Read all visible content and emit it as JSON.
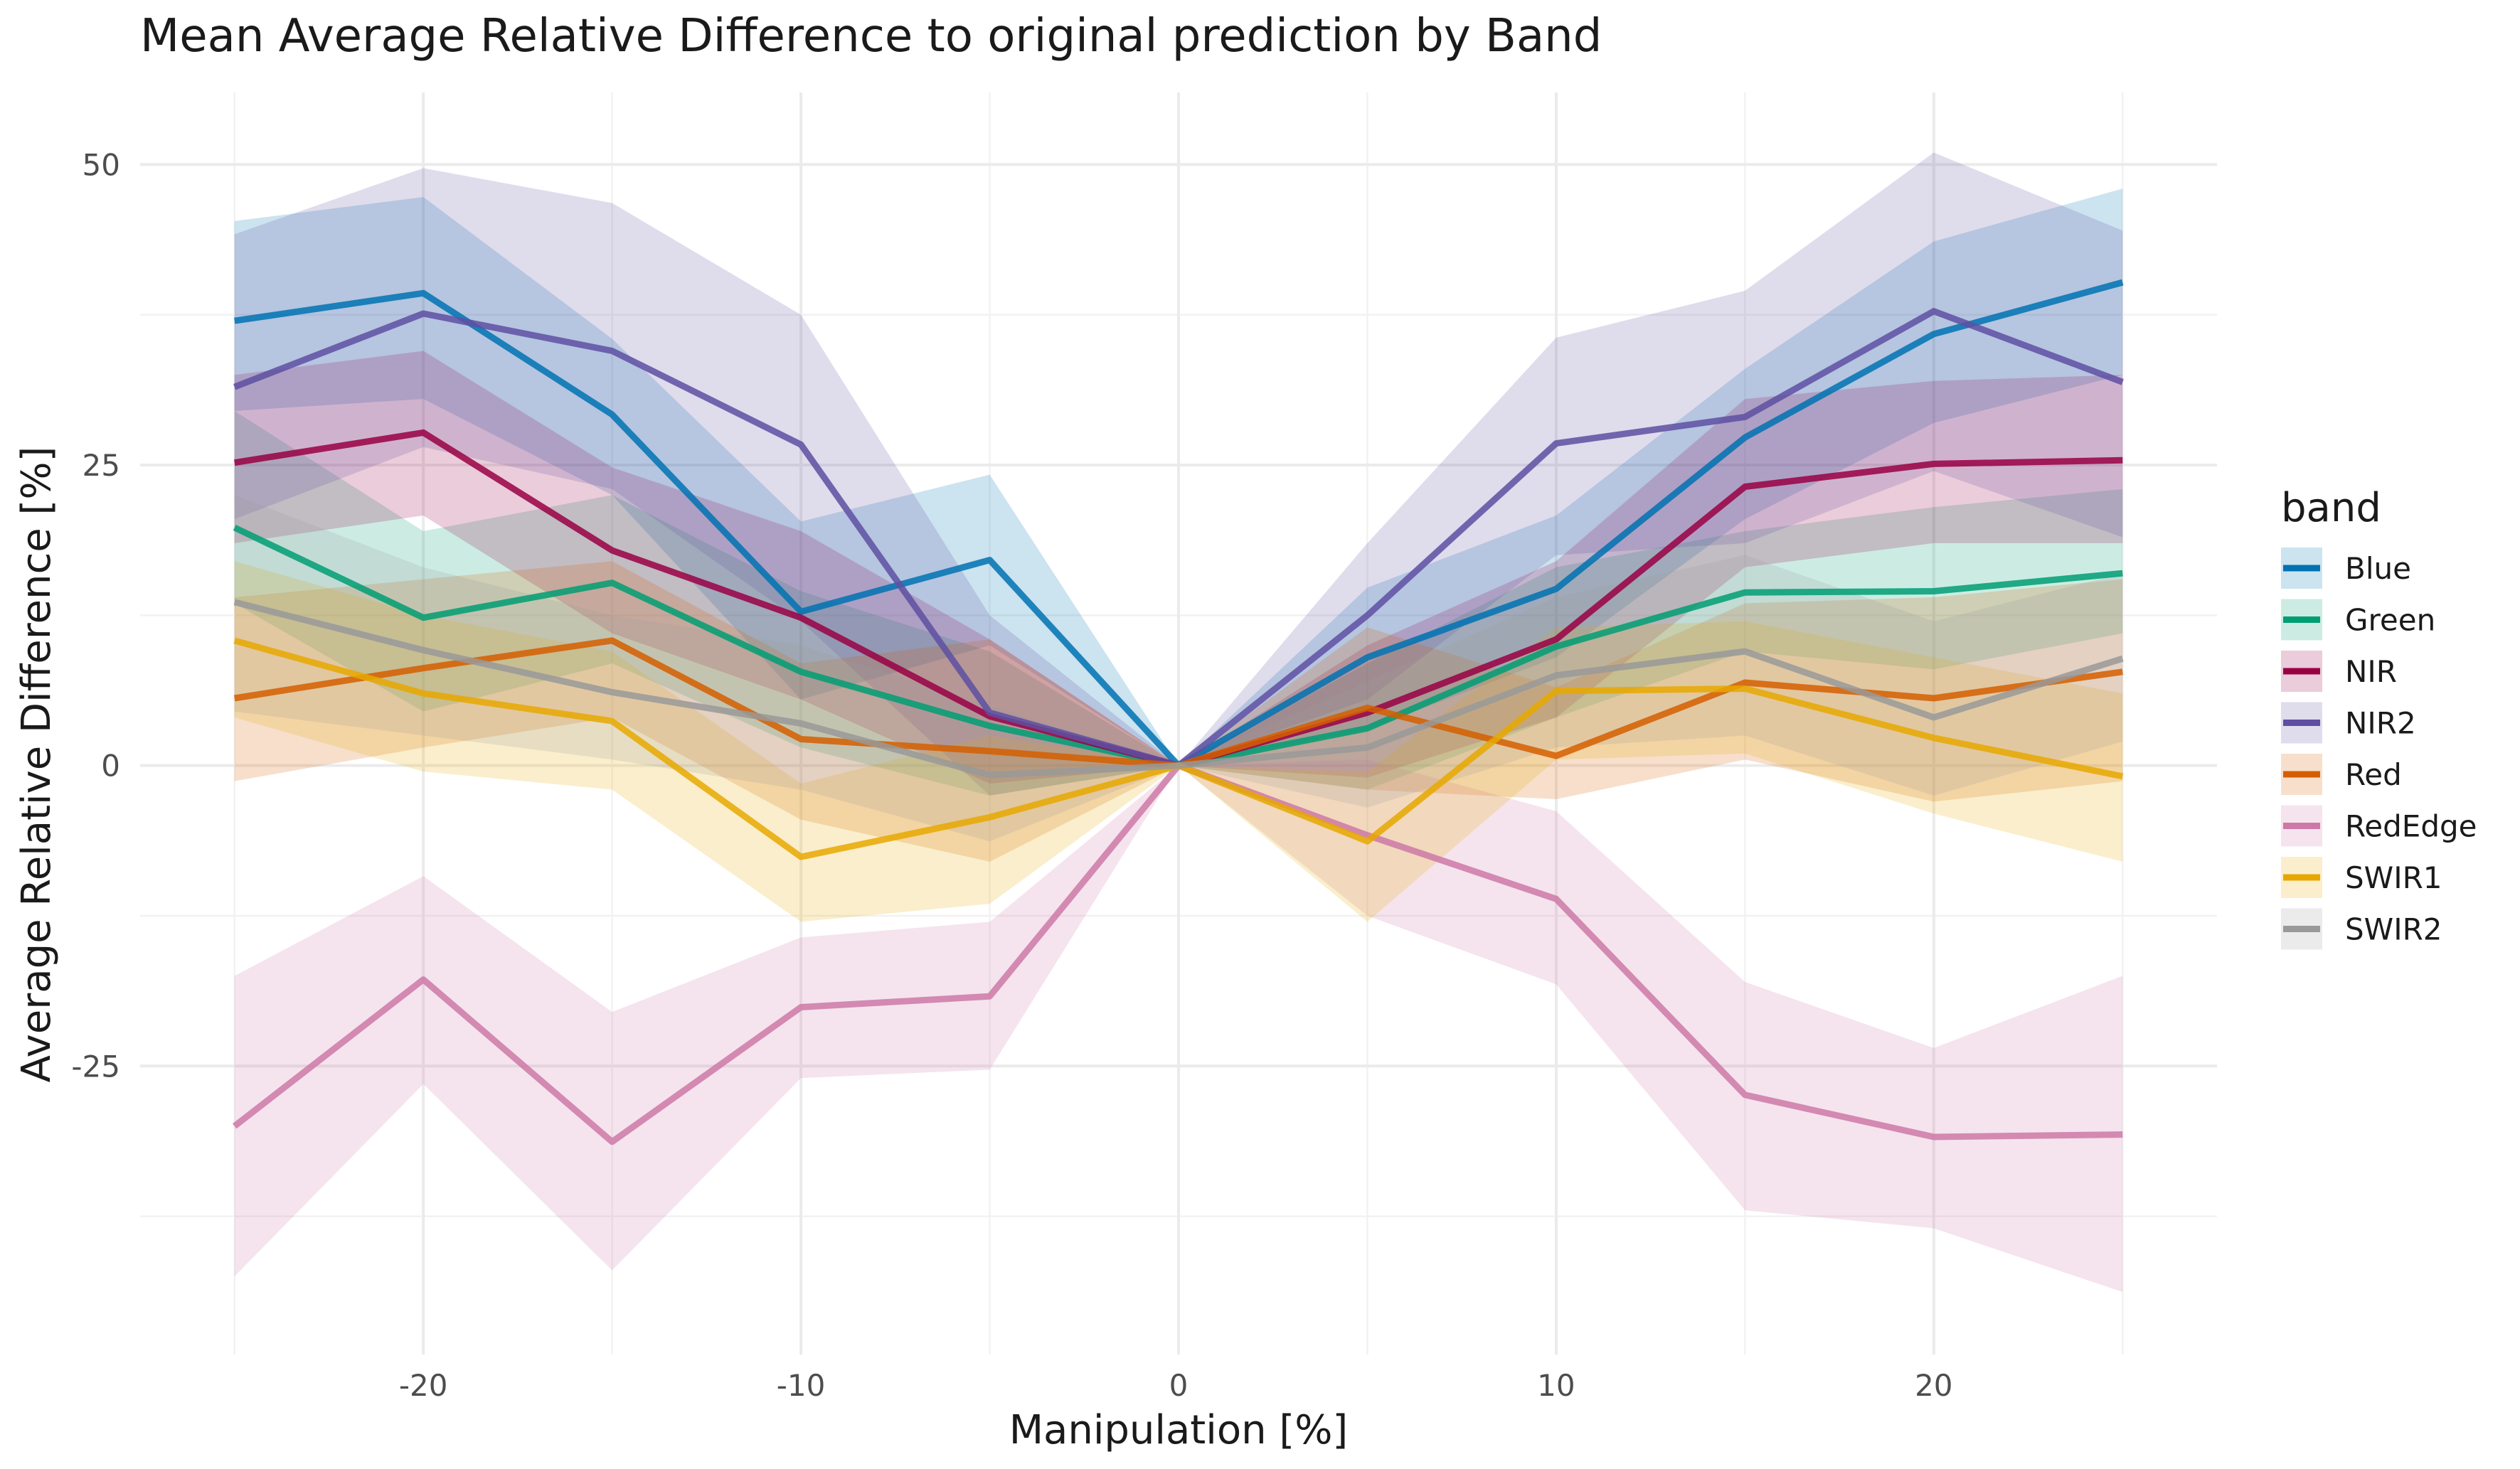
{
  "chart_data": {
    "type": "line",
    "title": "Mean Average Relative Difference to original prediction by Band",
    "xlabel": "Manipulation [%]",
    "ylabel": "Average Relative Difference [%]",
    "xlim": [
      -27.5,
      27.5
    ],
    "ylim": [
      -49,
      56
    ],
    "x": [
      -25,
      -20,
      -15,
      -10,
      -5,
      0,
      5,
      10,
      15,
      20,
      25
    ],
    "x_ticks": [
      -20,
      -10,
      0,
      10,
      20
    ],
    "y_ticks": [
      -25,
      0,
      25,
      50
    ],
    "grid": true,
    "legend_title": "band",
    "legend_position": "right",
    "series": [
      {
        "name": "Blue",
        "color": "#0072B2",
        "values": [
          37,
          39.3,
          29.2,
          12.8,
          17.1,
          0,
          9,
          14.7,
          27.3,
          35.9,
          40.2
        ],
        "lower": [
          29.5,
          30.5,
          22.5,
          5.5,
          10,
          0,
          3,
          9,
          20.5,
          28.5,
          32.5
        ],
        "upper": [
          45.3,
          47.3,
          35.5,
          20.3,
          24.2,
          0,
          14.8,
          20.8,
          33,
          43.6,
          48
        ]
      },
      {
        "name": "Green",
        "color": "#009E73",
        "values": [
          19.8,
          12.3,
          15.2,
          7.8,
          3.3,
          0,
          3.1,
          9.9,
          14.4,
          14.5,
          16
        ],
        "lower": [
          13.5,
          4.5,
          8.5,
          1.5,
          -2.5,
          0,
          -2,
          4,
          9.5,
          8,
          11
        ],
        "upper": [
          29.5,
          19.5,
          22.5,
          14.5,
          9.5,
          0,
          8.5,
          16.5,
          19.5,
          21.5,
          23
        ]
      },
      {
        "name": "NIR",
        "color": "#990044",
        "values": [
          25.2,
          27.7,
          17.9,
          12.3,
          4.1,
          0,
          4.4,
          10.5,
          23.2,
          25.1,
          25.4
        ],
        "lower": [
          18.5,
          20.8,
          11,
          5.5,
          -1.5,
          0,
          -1,
          4,
          16.5,
          18.5,
          18.5
        ],
        "upper": [
          32.5,
          34.5,
          24.8,
          19.5,
          10.5,
          0,
          10,
          17,
          30.5,
          32,
          32.5
        ]
      },
      {
        "name": "NIR2",
        "color": "#5E4FA2",
        "values": [
          31.5,
          37.6,
          34.5,
          26.7,
          4.4,
          0,
          12.5,
          26.8,
          29,
          37.8,
          31.9
        ],
        "lower": [
          20.5,
          26.5,
          23,
          12,
          -2.5,
          0,
          5.5,
          17.5,
          18.5,
          24.5,
          19
        ],
        "upper": [
          44.2,
          49.7,
          46.8,
          37.5,
          12.5,
          0,
          18.5,
          35.6,
          39.5,
          51,
          44.5
        ]
      },
      {
        "name": "Red",
        "color": "#D55E00",
        "values": [
          5.6,
          8.1,
          10.4,
          2.2,
          1.2,
          0,
          4.8,
          0.8,
          6.9,
          5.6,
          7.8
        ],
        "lower": [
          -1.3,
          1.5,
          4,
          -4.5,
          -8,
          0,
          -2,
          -2.8,
          0.5,
          -3,
          -1.3
        ],
        "upper": [
          14,
          15.5,
          17,
          8.5,
          10.5,
          0,
          11.5,
          6.5,
          13.5,
          14,
          15.5
        ]
      },
      {
        "name": "RedEdge",
        "color": "#CC79A7",
        "values": [
          -30,
          -17.8,
          -31.3,
          -20.1,
          -19.2,
          0,
          -5.8,
          -11.1,
          -27.4,
          -30.9,
          -30.7
        ],
        "lower": [
          -42.5,
          -26.5,
          -42,
          -26,
          -25.3,
          0,
          -12.5,
          -18.2,
          -37,
          -38.5,
          -43.8
        ],
        "upper": [
          -17.5,
          -9.2,
          -20.5,
          -14.3,
          -13,
          0,
          0.5,
          -3.8,
          -18,
          -23.5,
          -17.5
        ]
      },
      {
        "name": "SWIR1",
        "color": "#E6A800",
        "values": [
          10.4,
          6,
          3.7,
          -7.6,
          -4.3,
          0,
          -6.3,
          6.2,
          6.4,
          2.3,
          -0.9
        ],
        "lower": [
          4,
          -0.5,
          -2,
          -13,
          -11.5,
          0,
          -13,
          0.5,
          1,
          -4,
          -8
        ],
        "upper": [
          17,
          12.5,
          9.5,
          -1.5,
          2.5,
          0,
          -0.5,
          11.5,
          12,
          9,
          6
        ]
      },
      {
        "name": "SWIR2",
        "color": "#999999",
        "values": [
          13.6,
          9.6,
          6.1,
          3.5,
          -0.8,
          0,
          1.5,
          7.5,
          9.5,
          4,
          8.9
        ],
        "lower": [
          4.5,
          2.5,
          0.5,
          -2,
          -6.3,
          0,
          -3.5,
          1.5,
          2.5,
          -2.5,
          2
        ],
        "upper": [
          22.5,
          16.5,
          12.5,
          10,
          5,
          0,
          7,
          14,
          17.5,
          12,
          16
        ]
      }
    ]
  }
}
